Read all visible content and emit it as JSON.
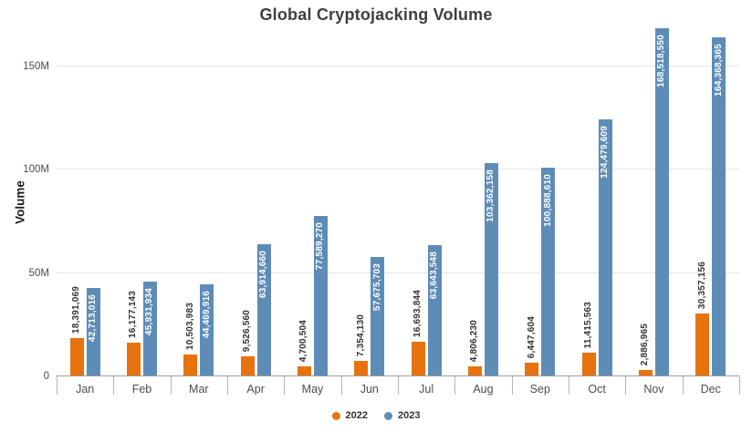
{
  "chart_data": {
    "type": "bar",
    "title": "Global Cryptojacking Volume",
    "ylabel": "Volume",
    "xlabel": "",
    "grid": "horizontal",
    "legend_position": "bottom",
    "categories": [
      "Jan",
      "Feb",
      "Mar",
      "Apr",
      "May",
      "Jun",
      "Jul",
      "Aug",
      "Sep",
      "Oct",
      "Nov",
      "Dec"
    ],
    "series": [
      {
        "name": "2022",
        "color": "#E8720D",
        "label_color": "#333333",
        "labels_inside": false,
        "values": [
          18391069,
          16177143,
          10503983,
          9526560,
          4700504,
          7354130,
          16693844,
          4806230,
          6447604,
          11415563,
          2886965,
          30357156
        ]
      },
      {
        "name": "2023",
        "color": "#5D8CB7",
        "label_color": "#ffffff",
        "labels_inside": true,
        "values": [
          42713016,
          45931934,
          44469916,
          63914660,
          77589270,
          57675703,
          63643548,
          103362158,
          100888610,
          124479609,
          168518550,
          164368365
        ]
      }
    ],
    "yticks": [
      {
        "value": 0,
        "label": "0"
      },
      {
        "value": 50000000,
        "label": "50M"
      },
      {
        "value": 100000000,
        "label": "100M"
      },
      {
        "value": 150000000,
        "label": "150M"
      }
    ],
    "ylim": [
      0,
      169000000
    ],
    "ymax": 169000000
  }
}
